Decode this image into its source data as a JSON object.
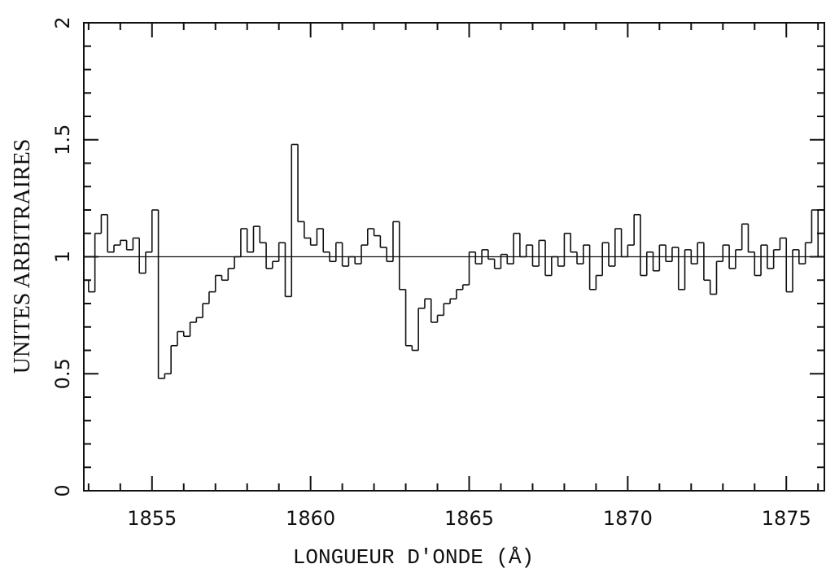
{
  "chart_data": {
    "type": "line",
    "step": true,
    "x_label": "LONGUEUR D'ONDE (Å)",
    "y_label": "UNITES ARBITRAIRES",
    "xlim": [
      1852.85,
      1876.2
    ],
    "ylim": [
      0,
      2
    ],
    "xticks": [
      1855,
      1860,
      1865,
      1870,
      1875
    ],
    "xminorticks": [
      1853,
      1854,
      1856,
      1857,
      1858,
      1859,
      1861,
      1862,
      1863,
      1864,
      1866,
      1867,
      1868,
      1869,
      1871,
      1872,
      1873,
      1874,
      1876
    ],
    "yticks": [
      0,
      0.5,
      1,
      1.5,
      2
    ],
    "yminorticks": [
      0.1,
      0.2,
      0.3,
      0.4,
      0.6,
      0.7,
      0.8,
      0.9,
      1.1,
      1.2,
      1.3,
      1.4,
      1.6,
      1.7,
      1.8,
      1.9
    ],
    "reference_line": 1,
    "color": "#111111",
    "x": [
      1852.9,
      1853.1,
      1853.3,
      1853.5,
      1853.7,
      1853.9,
      1854.1,
      1854.3,
      1854.5,
      1854.7,
      1854.9,
      1855.1,
      1855.3,
      1855.5,
      1855.7,
      1855.9,
      1856.1,
      1856.3,
      1856.5,
      1856.7,
      1856.9,
      1857.1,
      1857.3,
      1857.5,
      1857.7,
      1857.9,
      1858.1,
      1858.3,
      1858.5,
      1858.7,
      1858.9,
      1859.1,
      1859.3,
      1859.5,
      1859.7,
      1859.9,
      1860.1,
      1860.3,
      1860.5,
      1860.7,
      1860.9,
      1861.1,
      1861.3,
      1861.5,
      1861.7,
      1861.9,
      1862.1,
      1862.3,
      1862.5,
      1862.7,
      1862.9,
      1863.1,
      1863.3,
      1863.5,
      1863.7,
      1863.9,
      1864.1,
      1864.3,
      1864.5,
      1864.7,
      1864.9,
      1865.1,
      1865.3,
      1865.5,
      1865.7,
      1865.9,
      1866.1,
      1866.3,
      1866.5,
      1866.7,
      1866.9,
      1867.1,
      1867.3,
      1867.5,
      1867.7,
      1867.9,
      1868.1,
      1868.3,
      1868.5,
      1868.7,
      1868.9,
      1869.1,
      1869.3,
      1869.5,
      1869.7,
      1869.9,
      1870.1,
      1870.3,
      1870.5,
      1870.7,
      1870.9,
      1871.1,
      1871.3,
      1871.5,
      1871.7,
      1871.9,
      1872.1,
      1872.3,
      1872.5,
      1872.7,
      1872.9,
      1873.1,
      1873.3,
      1873.5,
      1873.7,
      1873.9,
      1874.1,
      1874.3,
      1874.5,
      1874.7,
      1874.9,
      1875.1,
      1875.3,
      1875.5,
      1875.7,
      1875.9,
      1876.1
    ],
    "values": [
      0.9,
      0.85,
      1.1,
      1.18,
      1.02,
      1.05,
      1.07,
      1.03,
      1.08,
      0.93,
      1.02,
      1.2,
      0.48,
      0.5,
      0.62,
      0.68,
      0.66,
      0.72,
      0.74,
      0.8,
      0.85,
      0.92,
      0.9,
      0.95,
      1.0,
      1.12,
      1.02,
      1.13,
      1.06,
      0.95,
      0.98,
      1.06,
      0.83,
      1.48,
      1.15,
      1.08,
      1.05,
      1.12,
      1.02,
      0.98,
      1.06,
      0.96,
      1.0,
      0.97,
      1.05,
      1.12,
      1.09,
      1.04,
      0.98,
      1.15,
      0.86,
      0.62,
      0.6,
      0.78,
      0.82,
      0.72,
      0.75,
      0.8,
      0.82,
      0.86,
      0.88,
      1.02,
      0.97,
      1.03,
      0.99,
      0.95,
      1.01,
      0.97,
      1.1,
      1.0,
      1.05,
      0.96,
      1.07,
      0.92,
      1.0,
      0.96,
      1.1,
      1.02,
      0.97,
      1.05,
      0.86,
      0.92,
      1.06,
      0.96,
      1.12,
      1.0,
      1.05,
      1.18,
      0.92,
      1.02,
      0.94,
      1.05,
      0.98,
      1.04,
      0.86,
      1.03,
      0.97,
      1.06,
      0.9,
      0.84,
      0.98,
      1.05,
      0.95,
      1.03,
      1.14,
      1.02,
      0.92,
      1.05,
      0.95,
      1.03,
      1.08,
      0.85,
      1.03,
      0.97,
      1.06,
      1.2,
      1.0
    ]
  }
}
